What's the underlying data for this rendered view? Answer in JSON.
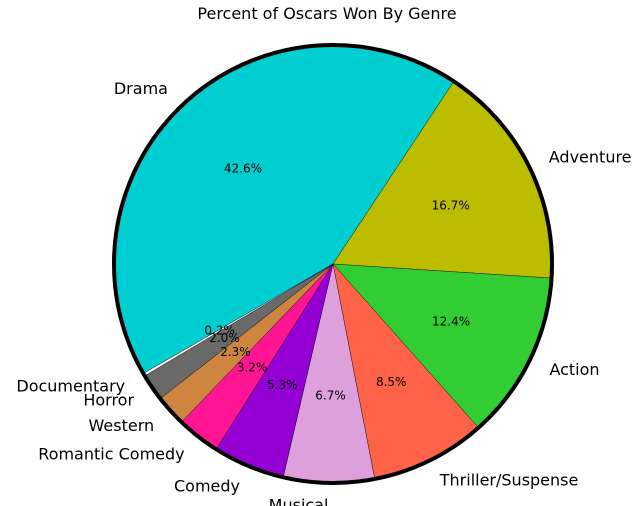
{
  "chart_data": {
    "type": "pie",
    "title": "Percent of Oscars Won By Genre",
    "categories": [
      "Drama",
      "Adventure",
      "Action",
      "Thriller/Suspense",
      "Musical",
      "Comedy",
      "Romantic Comedy",
      "Western",
      "Horror",
      "Documentary"
    ],
    "values": [
      42.6,
      16.7,
      12.4,
      8.5,
      6.7,
      5.3,
      3.2,
      2.3,
      2.0,
      0.2
    ],
    "value_labels": [
      "42.6%",
      "16.7%",
      "12.4%",
      "8.5%",
      "6.7%",
      "5.3%",
      "3.2%",
      "2.3%",
      "2.0%",
      "0.2%"
    ],
    "colors": [
      "#00ced1",
      "#bdbd00",
      "#32cd32",
      "#ff6347",
      "#dda0dd",
      "#9400d3",
      "#ff1493",
      "#cd853f",
      "#696969",
      "#ffffff"
    ],
    "edge_color": "#000000",
    "start_angle_deg": 210,
    "direction": "counterclockwise",
    "legend": "none"
  }
}
